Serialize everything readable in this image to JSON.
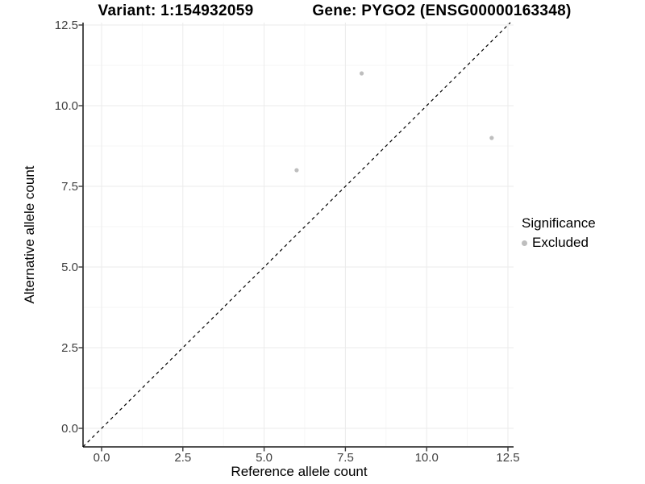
{
  "chart_data": {
    "type": "scatter",
    "title_left": "Variant: 1:154932059",
    "title_right": "Gene: PYGO2 (ENSG00000163348)",
    "xlabel": "Reference allele count",
    "ylabel": "Alternative allele count",
    "x_ticks": [
      0.0,
      2.5,
      5.0,
      7.5,
      10.0,
      12.5
    ],
    "y_ticks": [
      0.0,
      2.5,
      5.0,
      7.5,
      10.0,
      12.5
    ],
    "x_tick_labels": [
      "0.0",
      "2.5",
      "5.0",
      "7.5",
      "10.0",
      "12.5"
    ],
    "y_tick_labels": [
      "0.0",
      "2.5",
      "5.0",
      "7.5",
      "10.0",
      "12.5"
    ],
    "xlim": [
      -0.57,
      12.67
    ],
    "ylim": [
      -0.575,
      12.575
    ],
    "grid": true,
    "series": [
      {
        "name": "Excluded",
        "color": "#bebebe",
        "points": [
          [
            6,
            8
          ],
          [
            8,
            11
          ],
          [
            12,
            9
          ]
        ]
      }
    ],
    "reference_line": {
      "type": "identity",
      "style": "dashed",
      "color": "#000000",
      "label": "y = x"
    },
    "legend": {
      "title": "Significance",
      "position": "right",
      "entries": [
        {
          "label": "Excluded",
          "color": "#bebebe"
        }
      ]
    },
    "colors": {
      "background": "#ffffff",
      "axis_line": "#3a3a3a",
      "tick_label": "#404040",
      "grid_major": "#ebebeb",
      "grid_minor": "#f6f6f6",
      "point": "#bebebe"
    }
  }
}
